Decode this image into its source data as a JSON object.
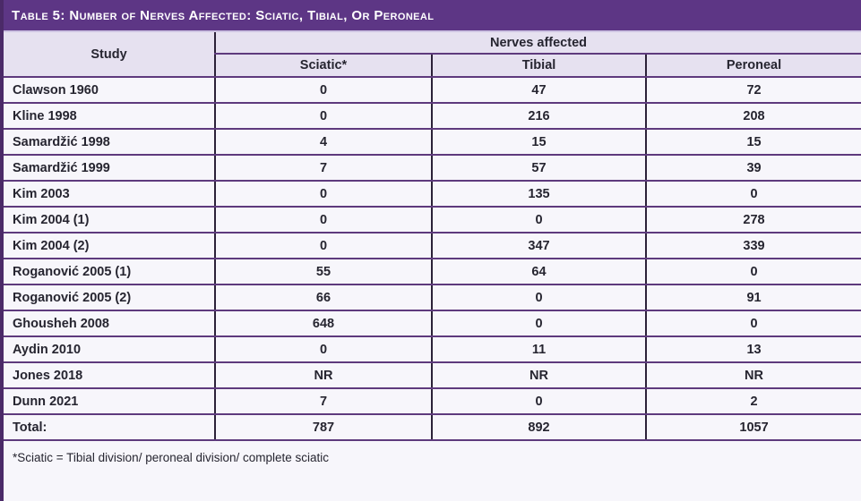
{
  "title": "Table 5: Number of Nerves Affected: Sciatic, Tibial, Or Peroneal",
  "table": {
    "study_header": "Study",
    "group_header": "Nerves affected",
    "columns": [
      "Sciatic*",
      "Tibial",
      "Peroneal"
    ],
    "rows": [
      {
        "study": "Clawson 1960",
        "values": [
          "0",
          "47",
          "72"
        ]
      },
      {
        "study": "Kline 1998",
        "values": [
          "0",
          "216",
          "208"
        ]
      },
      {
        "study": "Samardžić 1998",
        "values": [
          "4",
          "15",
          "15"
        ]
      },
      {
        "study": "Samardžić 1999",
        "values": [
          "7",
          "57",
          "39"
        ]
      },
      {
        "study": "Kim 2003",
        "values": [
          "0",
          "135",
          "0"
        ]
      },
      {
        "study": "Kim 2004 (1)",
        "values": [
          "0",
          "0",
          "278"
        ]
      },
      {
        "study": "Kim 2004 (2)",
        "values": [
          "0",
          "347",
          "339"
        ]
      },
      {
        "study": "Roganović 2005 (1)",
        "values": [
          "55",
          "64",
          "0"
        ]
      },
      {
        "study": "Roganović 2005 (2)",
        "values": [
          "66",
          "0",
          "91"
        ]
      },
      {
        "study": "Ghousheh 2008",
        "values": [
          "648",
          "0",
          "0"
        ]
      },
      {
        "study": "Aydin 2010",
        "values": [
          "0",
          "11",
          "13"
        ]
      },
      {
        "study": "Jones 2018",
        "values": [
          "NR",
          "NR",
          "NR"
        ]
      },
      {
        "study": "Dunn 2021",
        "values": [
          "7",
          "0",
          "2"
        ]
      }
    ],
    "total": {
      "label": "Total:",
      "values": [
        "787",
        "892",
        "1057"
      ]
    }
  },
  "footnote": "*Sciatic = Tibial division/ peroneal division/ complete sciatic",
  "colors": {
    "title_bar": "#5d3685",
    "left_strip": "#4b2a68",
    "header_bg": "#e6e1f0",
    "row_bg": "#f7f6fb",
    "horizontal_border": "#5e3a7d",
    "vertical_border": "#2b2138",
    "title_text": "#ffffff",
    "body_text": "#262530"
  }
}
